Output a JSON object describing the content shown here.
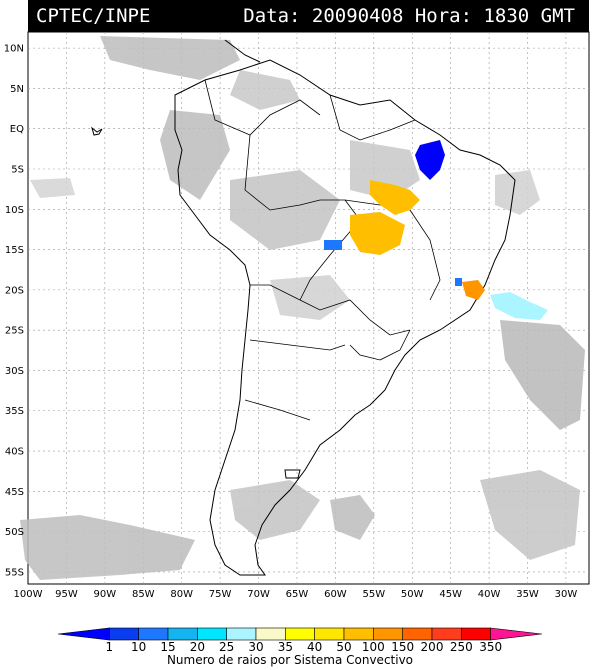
{
  "header": {
    "source": "CPTEC/INPE",
    "datetime": "Data: 20090408 Hora: 1830 GMT"
  },
  "map": {
    "lat_labels": [
      "10N",
      "5N",
      "EQ",
      "5S",
      "10S",
      "15S",
      "20S",
      "25S",
      "30S",
      "35S",
      "40S",
      "45S",
      "50S",
      "55S"
    ],
    "lon_labels": [
      "100W",
      "95W",
      "90W",
      "85W",
      "80W",
      "75W",
      "70W",
      "65W",
      "60W",
      "55W",
      "50W",
      "45W",
      "40W",
      "35W",
      "30W"
    ]
  },
  "legend": {
    "title": "Numero de raios por Sistema Convectivo",
    "values": [
      "1",
      "10",
      "15",
      "20",
      "25",
      "30",
      "35",
      "40",
      "50",
      "100",
      "150",
      "200",
      "250",
      "350"
    ],
    "colors": [
      "#0000ff",
      "#0a3cf0",
      "#1e78ff",
      "#14b4f0",
      "#00e6ff",
      "#aaf5ff",
      "#fafac8",
      "#ffff00",
      "#ffe600",
      "#ffbe00",
      "#ff9600",
      "#ff6400",
      "#ff3c1e",
      "#ff0000",
      "#ff1493"
    ]
  },
  "lightning_cells": [
    {
      "level": "1",
      "color": "#0000ff"
    },
    {
      "level": "10",
      "color": "#1e78ff"
    },
    {
      "level": "25",
      "color": "#aaf5ff"
    },
    {
      "level": "100",
      "color": "#ffbe00"
    },
    {
      "level": "150",
      "color": "#ff9600"
    }
  ]
}
